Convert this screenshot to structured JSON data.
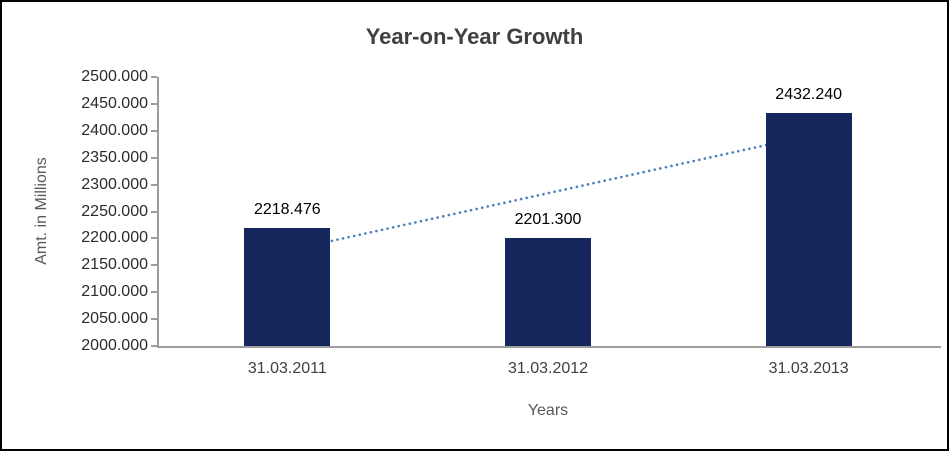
{
  "chart_data": {
    "type": "bar",
    "title": "Year-on-Year Growth",
    "xlabel": "Years",
    "ylabel": "Amt. in Millions",
    "categories": [
      "31.03.2011",
      "31.03.2012",
      "31.03.2013"
    ],
    "values": [
      2218.476,
      2201.3,
      2432.24
    ],
    "value_labels": [
      "2218.476",
      "2201.300",
      "2432.240"
    ],
    "ylim": [
      2000,
      2500
    ],
    "y_tick_step": 50,
    "y_ticks": [
      "2500.000",
      "2450.000",
      "2400.000",
      "2350.000",
      "2300.000",
      "2250.000",
      "2200.000",
      "2150.000",
      "2100.000",
      "2050.000",
      "2000.000"
    ],
    "grid": false,
    "legend": "none",
    "bar_color": "#15265d",
    "axis_line_color": "#9d9d9d",
    "trendline": {
      "type": "linear",
      "style": "dotted",
      "color": "#4a7ebb"
    }
  }
}
